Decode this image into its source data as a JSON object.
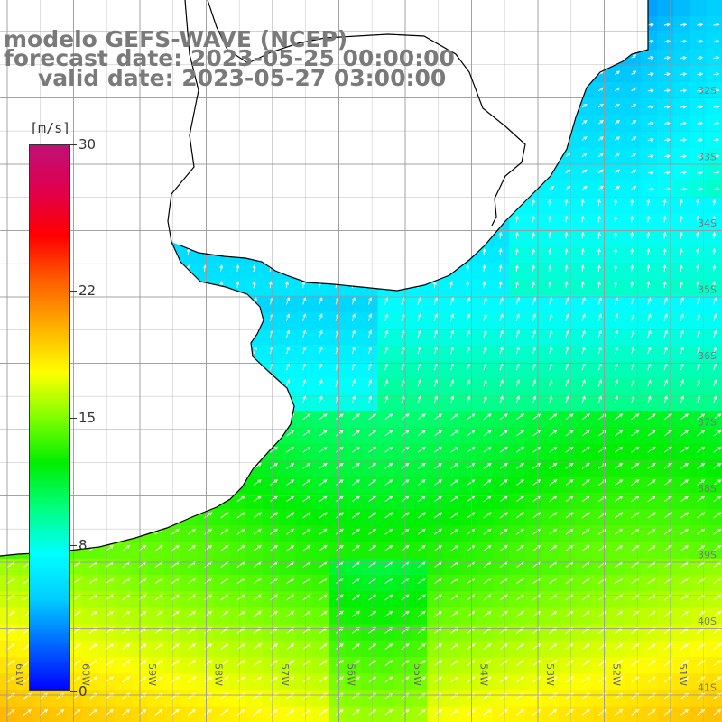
{
  "title": {
    "model": "modelo GEFS-WAVE (NCEP)",
    "forecast_date": "forecast date: 2023-05-25 00:00:00",
    "valid_date": "valid date: 2023-05-27 03:00:00"
  },
  "colorbar": {
    "unit": "[m/s]",
    "min": 0,
    "max": 30,
    "ticks": [
      "30",
      "22",
      "15",
      "8",
      "0"
    ],
    "tick_values": [
      30,
      22,
      15,
      8,
      0
    ],
    "stops": [
      "#0000ff",
      "#0066ff",
      "#00ccff",
      "#00ffff",
      "#00ff80",
      "#00ee00",
      "#80ff00",
      "#ffff00",
      "#ffb000",
      "#ff6000",
      "#ff0000",
      "#e0004c",
      "#c01078"
    ]
  },
  "map": {
    "lon_range": [
      -61,
      -50
    ],
    "lat_range": [
      -41,
      -30
    ],
    "lon_labels": [
      "61W",
      "60W",
      "59W",
      "58W",
      "57W",
      "56W",
      "55W",
      "54W",
      "53W",
      "52W",
      "51W"
    ],
    "lat_labels": [
      "32S",
      "33S",
      "34S",
      "35S",
      "36S",
      "37S",
      "38S",
      "39S",
      "40S",
      "41S"
    ],
    "grid": true,
    "land_color": "#ffffff",
    "coastline_color": "#000000",
    "gridline_color": "#999999",
    "arrow_color": "#ffffff"
  }
}
